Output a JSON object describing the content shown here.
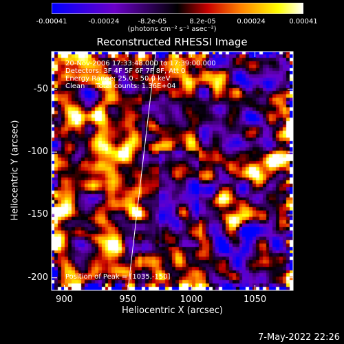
{
  "chart_data": {
    "type": "heatmap",
    "title": "Reconstructed RHESSI Image",
    "xlabel": "Heliocentric X (arcsec)",
    "ylabel": "Heliocentric Y (arcsec)",
    "xlim": [
      890,
      1080
    ],
    "ylim": [
      -210,
      -20
    ],
    "xticks": [
      "900",
      "950",
      "1000",
      "1050"
    ],
    "xtick_values": [
      900,
      950,
      1000,
      1050
    ],
    "yticks": [
      "-50",
      "-100",
      "-150",
      "-200"
    ],
    "ytick_values": [
      -50,
      -100,
      -150,
      -200
    ],
    "colorbar": {
      "ticks": [
        "-0.00041",
        "-0.00024",
        "-8.2e-05",
        "8.2e-05",
        "0.00024",
        "0.00041"
      ],
      "tick_values": [
        -0.00041,
        -0.00024,
        -8.2e-05,
        8.2e-05,
        0.00024,
        0.00041
      ],
      "units": "(photons cm⁻² s⁻¹ asec⁻²)",
      "range": [
        -0.00041,
        0.00041
      ],
      "colors": [
        "#0000ff",
        "#6a00c8",
        "#000000",
        "#c80000",
        "#ff8000",
        "#ffff00",
        "#ffffff"
      ]
    },
    "limb_line": {
      "x": [
        950,
        972
      ],
      "y": [
        -210,
        -20
      ]
    },
    "peak": {
      "x": 1035,
      "y": -150
    }
  },
  "annotations": {
    "time": "20-Nov-2006 17:33:48.000 to 17:39:00.000",
    "detectors": "Detectors: 3F 4F 5F 6F 7F 8F, Att 0",
    "energy": "Energy Range: 25.0 - 50.0 keV",
    "clean": "Clean     Total counts: 1.36E+04",
    "peak_text": "Position of Peak = [1035,-150]"
  },
  "footer": {
    "date": "7-May-2022 22:26"
  }
}
